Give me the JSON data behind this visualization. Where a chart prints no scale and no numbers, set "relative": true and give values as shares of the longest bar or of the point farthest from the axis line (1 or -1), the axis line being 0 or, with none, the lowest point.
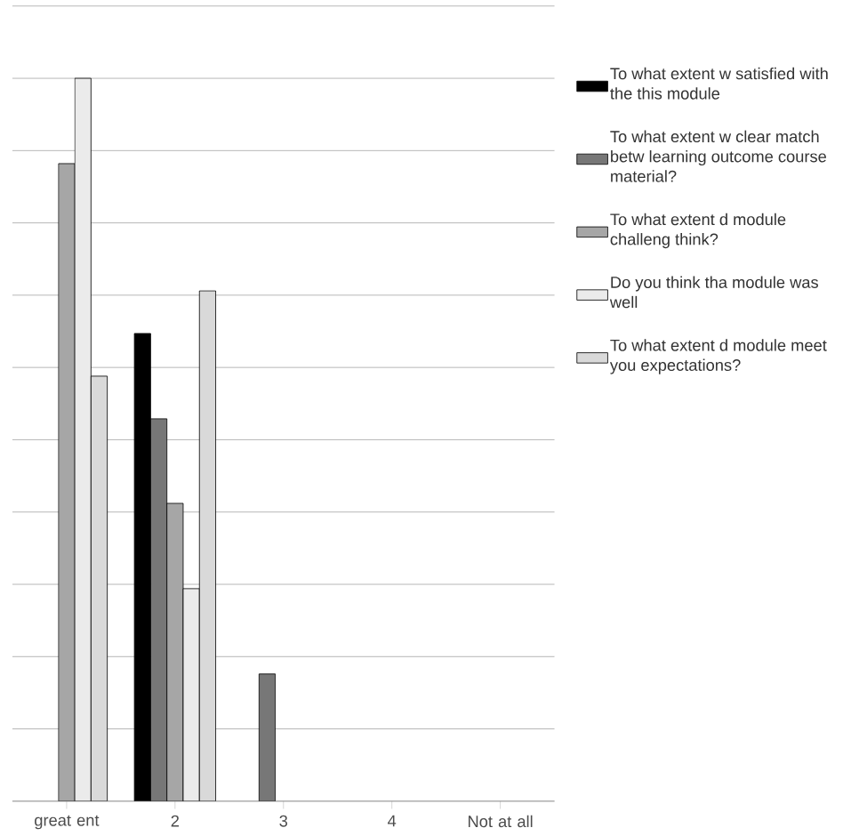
{
  "chart_data": {
    "type": "bar",
    "relative": true,
    "grid": "y",
    "legend": "right",
    "categories": [
      "great ent",
      "2",
      "3",
      "4",
      "Not at all"
    ],
    "series": [
      {
        "name": "To what extent w satisfied with the this module",
        "color": "#000000",
        "values": [
          null,
          0.647,
          null,
          null,
          null
        ]
      },
      {
        "name": "To what extent w clear match betw learning outcome course material?",
        "color": "#777777",
        "values": [
          null,
          0.529,
          0.176,
          null,
          null
        ]
      },
      {
        "name": "To what extent d module challeng think?",
        "color": "#a6a6a6",
        "values": [
          0.882,
          0.412,
          null,
          null,
          null
        ]
      },
      {
        "name": "Do you think tha module was well",
        "color": "#ebebeb",
        "values": [
          1.0,
          0.294,
          null,
          null,
          null
        ]
      },
      {
        "name": "To what extent d module meet you expectations?",
        "color": "#d9d9d9",
        "values": [
          0.588,
          0.706,
          null,
          null,
          null
        ]
      }
    ]
  }
}
